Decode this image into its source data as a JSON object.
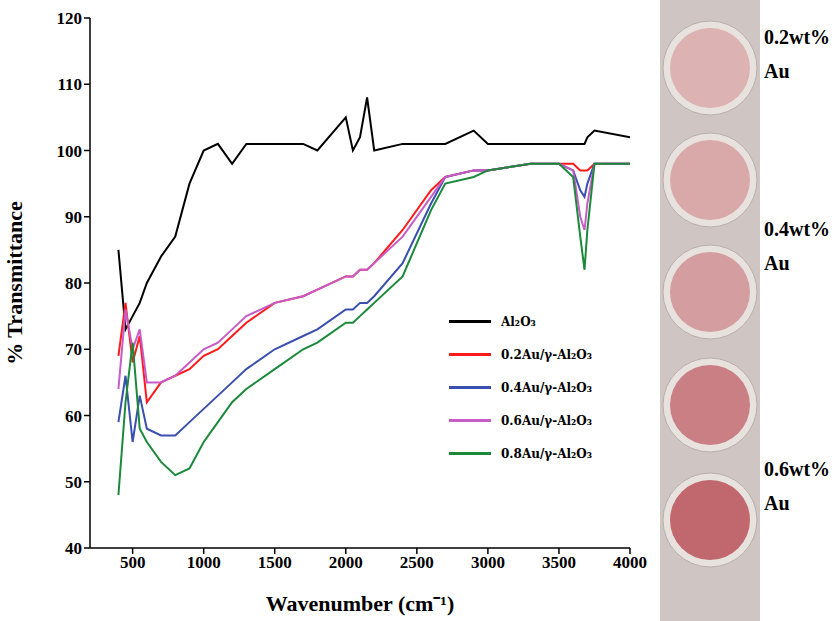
{
  "chart_data": {
    "type": "line",
    "xlabel": "Wavenumber (cm⁻¹)",
    "ylabel": "% Transmittance",
    "xlim": [
      200,
      4000
    ],
    "xticks": [
      500,
      1000,
      1500,
      2000,
      2500,
      3000,
      3500,
      4000
    ],
    "ylim": [
      40,
      120
    ],
    "yticks": [
      40,
      50,
      60,
      70,
      80,
      90,
      100,
      110,
      120
    ],
    "grid": false,
    "legend": "right",
    "x": [
      400,
      450,
      500,
      550,
      600,
      700,
      800,
      900,
      1000,
      1100,
      1200,
      1300,
      1500,
      1700,
      1800,
      2000,
      2050,
      2100,
      2150,
      2200,
      2400,
      2600,
      2700,
      2900,
      3000,
      3300,
      3500,
      3600,
      3650,
      3680,
      3700,
      3750,
      4000
    ],
    "series": [
      {
        "name": "Al₂O₃",
        "color": "#000000",
        "values": [
          85,
          73,
          75,
          77,
          80,
          84,
          87,
          95,
          100,
          101,
          98,
          101,
          101,
          101,
          100,
          105,
          100,
          102,
          108,
          100,
          101,
          101,
          101,
          103,
          101,
          101,
          101,
          101,
          101,
          101,
          102,
          103,
          102
        ]
      },
      {
        "name": "0.2Au/γ-Al₂O₃",
        "color": "#ff1a1a",
        "values": [
          69,
          77,
          68,
          72,
          62,
          65,
          66,
          67,
          69,
          70,
          72,
          74,
          77,
          78,
          79,
          81,
          81,
          82,
          82,
          83,
          88,
          94,
          96,
          97,
          97,
          98,
          98,
          98,
          97,
          97,
          97,
          98,
          98
        ]
      },
      {
        "name": "0.4Au/γ-Al₂O₃",
        "color": "#3a4fb0",
        "values": [
          59,
          66,
          56,
          63,
          58,
          57,
          57,
          59,
          61,
          63,
          65,
          67,
          70,
          72,
          73,
          76,
          76,
          77,
          77,
          78,
          83,
          92,
          96,
          97,
          97,
          98,
          98,
          97,
          94,
          93,
          95,
          98,
          98
        ]
      },
      {
        "name": "0.6Au/γ-Al₂O₃",
        "color": "#c75bc7",
        "values": [
          64,
          76,
          70,
          73,
          65,
          65,
          66,
          68,
          70,
          71,
          73,
          75,
          77,
          78,
          79,
          81,
          81,
          82,
          82,
          83,
          87,
          93,
          96,
          97,
          97,
          98,
          98,
          97,
          90,
          88,
          92,
          98,
          98
        ]
      },
      {
        "name": "0.8Au/γ-Al₂O₃",
        "color": "#1a8a3a",
        "values": [
          48,
          62,
          71,
          58,
          56,
          53,
          51,
          52,
          56,
          59,
          62,
          64,
          67,
          70,
          71,
          74,
          74,
          75,
          76,
          77,
          81,
          91,
          95,
          96,
          97,
          98,
          98,
          96,
          87,
          82,
          88,
          98,
          98
        ]
      }
    ],
    "photo_labels": [
      "0.2wt% Au",
      "0.4wt% Au",
      "0.6wt% Au"
    ]
  }
}
